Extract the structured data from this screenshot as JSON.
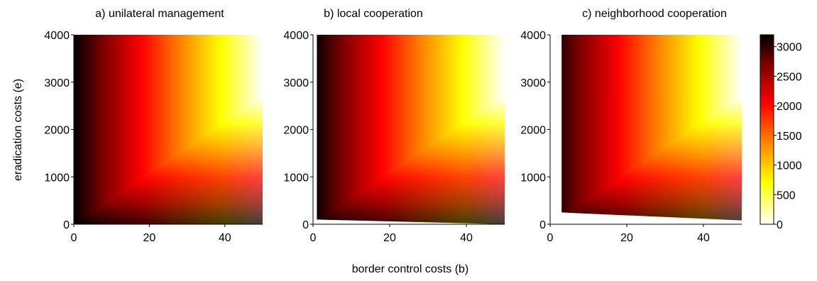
{
  "chart_data": [
    {
      "type": "heatmap",
      "title": "a) unilateral management",
      "xlabel": "",
      "ylabel": "eradication costs (e)",
      "xlim": [
        0,
        50
      ],
      "ylim": [
        0,
        4000
      ],
      "xticks": [
        "0",
        "20",
        "40"
      ],
      "yticks": [
        "0",
        "1000",
        "2000",
        "3000",
        "4000"
      ],
      "xtick_values": [
        0,
        20,
        40
      ],
      "ytick_values": [
        0,
        1000,
        2000,
        3000,
        4000
      ],
      "feasible_boundary": null
    },
    {
      "type": "heatmap",
      "title": "b) local cooperation",
      "xlabel": "border control costs (b)",
      "ylabel": "",
      "xlim": [
        0,
        50
      ],
      "ylim": [
        0,
        4000
      ],
      "xticks": [
        "0",
        "20",
        "40"
      ],
      "yticks": [
        "0",
        "1000",
        "2000",
        "3000",
        "4000"
      ],
      "xtick_values": [
        0,
        20,
        40
      ],
      "ytick_values": [
        0,
        1000,
        2000,
        3000,
        4000
      ],
      "feasible_boundary": {
        "x_min": 1,
        "y_at_xmin": 100,
        "y_at_xmax": 0
      }
    },
    {
      "type": "heatmap",
      "title": "c) neighborhood cooperation",
      "xlabel": "",
      "ylabel": "",
      "xlim": [
        0,
        50
      ],
      "ylim": [
        0,
        4000
      ],
      "xticks": [
        "0",
        "20",
        "40"
      ],
      "yticks": [
        "0",
        "1000",
        "2000",
        "3000",
        "4000"
      ],
      "xtick_values": [
        0,
        20,
        40
      ],
      "ytick_values": [
        0,
        1000,
        2000,
        3000,
        4000
      ],
      "feasible_boundary": {
        "x_min": 3,
        "y_at_xmin": 250,
        "y_at_xmax": 80
      }
    }
  ],
  "colorbar": {
    "min": 0,
    "max": 3200,
    "ticks": [
      "3000",
      "2500",
      "2000",
      "1500",
      "1000",
      "500",
      "0"
    ],
    "tick_values": [
      3000,
      2500,
      2000,
      1500,
      1000,
      500,
      0
    ],
    "colormap": "hot (reversed)",
    "colors": [
      "#000000",
      "#800000",
      "#ff0000",
      "#ff8000",
      "#ffff00",
      "#ffffff"
    ]
  }
}
